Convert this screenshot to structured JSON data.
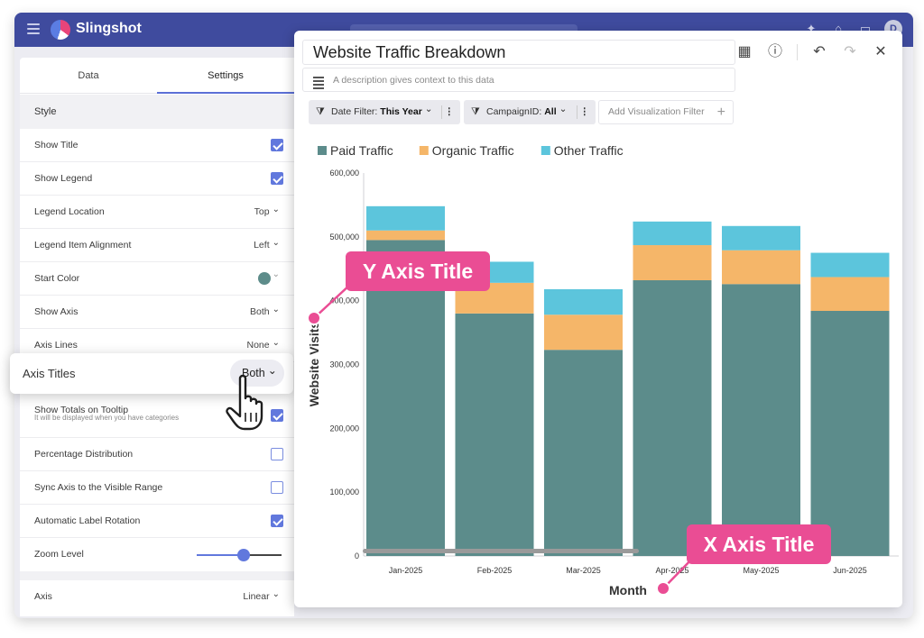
{
  "app": {
    "name": "Slingshot",
    "avatar_initial": "D"
  },
  "settings_panel": {
    "tabs": [
      {
        "label": "Data"
      },
      {
        "label": "Settings"
      }
    ],
    "active_tab": "Settings",
    "section_style": "Style",
    "rows": {
      "show_title": {
        "label": "Show Title",
        "checked": true
      },
      "show_legend": {
        "label": "Show Legend",
        "checked": true
      },
      "legend_location": {
        "label": "Legend Location",
        "value": "Top"
      },
      "legend_item_alignment": {
        "label": "Legend Item Alignment",
        "value": "Left"
      },
      "start_color": {
        "label": "Start Color",
        "color": "#5d8c8a"
      },
      "show_axis": {
        "label": "Show Axis",
        "value": "Both"
      },
      "axis_lines": {
        "label": "Axis Lines",
        "value": "None"
      },
      "show_totals": {
        "label": "Show Totals on Tooltip",
        "sublabel": "It will be displayed when you have categories",
        "checked": true
      },
      "percentage_distribution": {
        "label": "Percentage Distribution",
        "checked": false
      },
      "sync_axis": {
        "label": "Sync Axis to the Visible Range",
        "checked": false
      },
      "auto_label_rotation": {
        "label": "Automatic Label Rotation",
        "checked": true
      },
      "zoom_level": {
        "label": "Zoom Level",
        "fraction": 0.55
      }
    },
    "section_axis": {
      "label": "Axis",
      "value": "Linear"
    },
    "axis_titles_card": {
      "label": "Axis Titles",
      "value": "Both"
    }
  },
  "chart_window": {
    "title": "Website Traffic Breakdown",
    "description_placeholder": "A description gives context to this data",
    "filters": [
      {
        "label": "Date Filter:",
        "value": "This Year"
      },
      {
        "label": "CampaignID:",
        "value": "All"
      }
    ],
    "add_filter_label": "Add Visualization Filter",
    "toolbar_icons": [
      "table-icon",
      "help-icon",
      "undo-icon",
      "redo-icon",
      "close-icon"
    ]
  },
  "chart_data": {
    "type": "bar",
    "stacked": true,
    "categories": [
      "Jan-2025",
      "Feb-2025",
      "Mar-2025",
      "Apr-2025",
      "May-2025",
      "Jun-2025"
    ],
    "series": [
      {
        "name": "Paid Traffic",
        "color": "#5c8c8b",
        "values": [
          495000,
          380000,
          323000,
          432000,
          426000,
          384000
        ]
      },
      {
        "name": "Organic Traffic",
        "color": "#f5b669",
        "values": [
          15000,
          48000,
          55000,
          55000,
          53000,
          53000
        ]
      },
      {
        "name": "Other Traffic",
        "color": "#5cc5dc",
        "values": [
          38000,
          33000,
          40000,
          37000,
          38000,
          38000
        ]
      }
    ],
    "xlabel": "Month",
    "ylabel": "Website Visits",
    "ylim": [
      0,
      600000
    ],
    "yticks": [
      "0",
      "100,000",
      "200,000",
      "300,000",
      "400,000",
      "500,000",
      "600,000"
    ],
    "legend": "top-left",
    "grid": false
  },
  "callouts": {
    "y_axis": "Y Axis Title",
    "x_axis": "X Axis Title"
  },
  "colors": {
    "topbar": "#3f4b9e",
    "accent": "#6178dd",
    "callout": "#ea4d94"
  }
}
